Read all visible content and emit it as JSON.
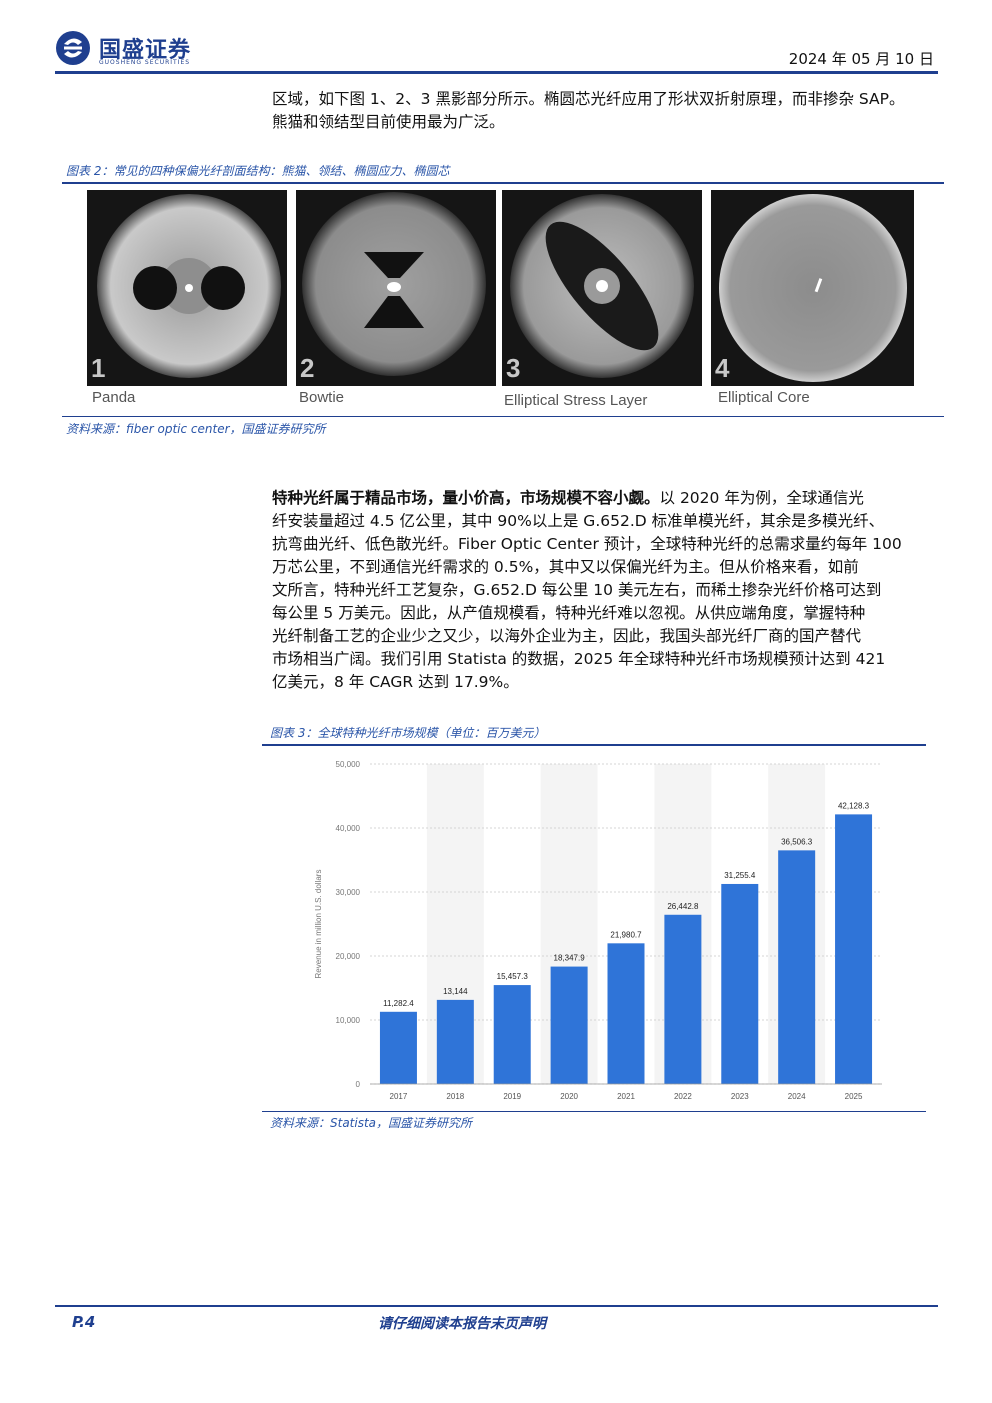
{
  "header": {
    "brand_cn": "国盛证券",
    "brand_en": "GUOSHENG SECURITIES",
    "date": "2024 年 05 月 10 日"
  },
  "intro": {
    "line1": "区域，如下图 1、2、3 黑影部分所示。椭圆芯光纤应用了形状双折射原理，而非掺杂 SAP。",
    "line2": "熊猫和领结型目前使用最为广泛。"
  },
  "figure2": {
    "caption": "图表 2：常见的四种保偏光纤剖面结构：熊猫、领结、椭圆应力、椭圆芯",
    "panels": [
      {
        "num": "1",
        "label": "Panda"
      },
      {
        "num": "2",
        "label": "Bowtie"
      },
      {
        "num": "3",
        "label": "Elliptical Stress Layer"
      },
      {
        "num": "4",
        "label": "Elliptical Core"
      }
    ],
    "source": "资料来源：fiber optic center，国盛证券研究所"
  },
  "body": {
    "bold_lead": "特种光纤属于精品市场，量小价高，市场规模不容小觑。",
    "lines": [
      "以 2020 年为例，全球通信光",
      "纤安装量超过 4.5 亿公里，其中 90%以上是 G.652.D 标准单模光纤，其余是多模光纤、",
      "抗弯曲光纤、低色散光纤。Fiber Optic Center 预计，全球特种光纤的总需求量约每年 100",
      "万芯公里，不到通信光纤需求的 0.5%，其中又以保偏光纤为主。但从价格来看，如前",
      "文所言，特种光纤工艺复杂，G.652.D 每公里 10 美元左右，而稀土掺杂光纤价格可达到",
      "每公里 5 万美元。因此，从产值规模看，特种光纤难以忽视。从供应端角度，掌握特种",
      "光纤制备工艺的企业少之又少，以海外企业为主，因此，我国头部光纤厂商的国产替代",
      "市场相当广阔。我们引用 Statista 的数据，2025 年全球特种光纤市场规模预计达到 421",
      "亿美元，8 年 CAGR 达到 17.9%。"
    ]
  },
  "figure3": {
    "caption": "图表 3：全球特种光纤市场规模（单位：百万美元）",
    "source": "资料来源：Statista，国盛证券研究所"
  },
  "chart_data": {
    "type": "bar",
    "categories": [
      "2017",
      "2018",
      "2019",
      "2020",
      "2021",
      "2022",
      "2023",
      "2024",
      "2025"
    ],
    "values": [
      11282.4,
      13144,
      15457.3,
      18347.9,
      21980.7,
      26442.8,
      31255.4,
      36506.3,
      42128.3
    ],
    "value_labels": [
      "11,282.4",
      "13,144",
      "15,457.3",
      "18,347.9",
      "21,980.7",
      "26,442.8",
      "31,255.4",
      "36,506.3",
      "42,128.3"
    ],
    "ylabel": "Revenue in million U.S. dollars",
    "ylim": [
      0,
      50000
    ],
    "yticks": [
      0,
      10000,
      20000,
      30000,
      40000,
      50000
    ],
    "ytick_labels": [
      "0",
      "10,000",
      "20,000",
      "30,000",
      "40,000",
      "50,000"
    ],
    "grid": true,
    "bar_color": "#2f74d8"
  },
  "footer": {
    "page": "P.4",
    "note": "请仔细阅读本报告末页声明"
  }
}
